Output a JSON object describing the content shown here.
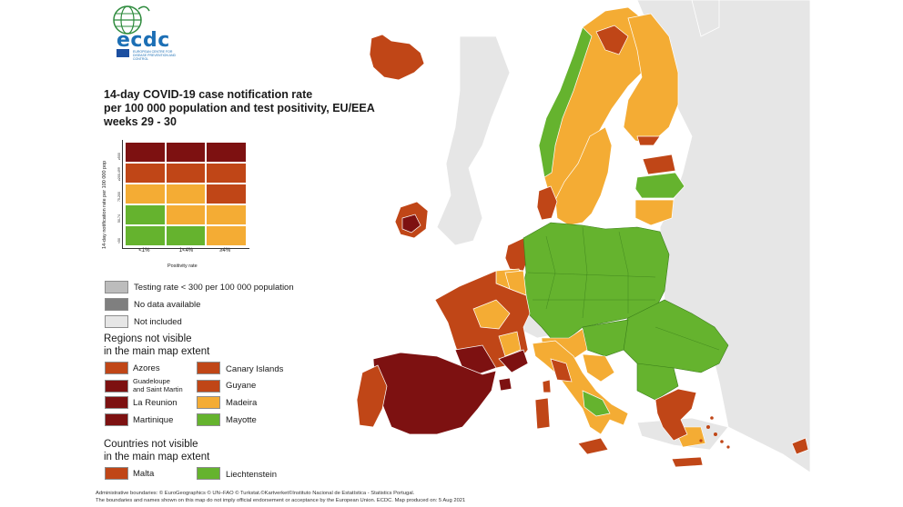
{
  "logo": {
    "text": "ecdc",
    "subtitle": "EUROPEAN CENTRE FOR DISEASE PREVENTION AND CONTROL"
  },
  "title": {
    "line1": "14-day COVID-19 case notification rate",
    "line2": "per 100 000 population and test positivity, EU/EEA",
    "line3": "weeks 29 - 30"
  },
  "matrix": {
    "y_label": "14-day notification rate per 100 000 pop",
    "x_label": "Positivity rate",
    "y_ticks": [
      "≥500",
      "≥200-499",
      "75-200",
      "50-74",
      "<50"
    ],
    "x_ticks": [
      "<1%",
      "1<4%",
      "≥4%"
    ],
    "colors": [
      [
        "#7d1111",
        "#7d1111",
        "#7d1111"
      ],
      [
        "#c04617",
        "#c04617",
        "#c04617"
      ],
      [
        "#f4ac34",
        "#f4ac34",
        "#c04617"
      ],
      [
        "#65b32e",
        "#f4ac34",
        "#f4ac34"
      ],
      [
        "#65b32e",
        "#65b32e",
        "#f4ac34"
      ]
    ]
  },
  "legend": {
    "testing": {
      "label": "Testing rate < 300 per 100 000 population",
      "color": "#bcbcbc"
    },
    "no_data": {
      "label": "No data available",
      "color": "#7f7f7f"
    },
    "not_included": {
      "label": "Not included",
      "color": "#e6e6e6"
    },
    "regions_title_1": "Regions not visible",
    "regions_title_2": "in the main map extent",
    "regions": [
      {
        "label": "Azores",
        "color": "#c04617"
      },
      {
        "label": "Canary Islands",
        "color": "#c04617"
      },
      {
        "label1": "Guadeloupe",
        "label2": "and Saint Martin",
        "color": "#7d1111"
      },
      {
        "label": "Guyane",
        "color": "#c04617"
      },
      {
        "label": "La Reunion",
        "color": "#7d1111"
      },
      {
        "label": "Madeira",
        "color": "#f4ac34"
      },
      {
        "label": "Martinique",
        "color": "#7d1111"
      },
      {
        "label": "Mayotte",
        "color": "#65b32e"
      }
    ],
    "countries_title_1": "Countries not visible",
    "countries_title_2": "in the main map extent",
    "countries": [
      {
        "label": "Malta",
        "color": "#c04617"
      },
      {
        "label": "Liechtenstein",
        "color": "#65b32e"
      }
    ]
  },
  "footer": {
    "line1": "Administrative boundaries: © EuroGeographics © UN–FAO © Turkstat.©Kartverket©Instituto Nacional de Estatística - Statistics Portugal.",
    "line2": "The boundaries and names shown on this map do not imply official endorsement or acceptance by the European Union. ECDC. Map produced on: 5 Aug 2021"
  },
  "map_colors": {
    "sea": "#ffffff",
    "not_included": "#e6e6e6",
    "dark_red": "#7d1111",
    "red": "#c04617",
    "orange": "#f4ac34",
    "green": "#65b32e"
  }
}
